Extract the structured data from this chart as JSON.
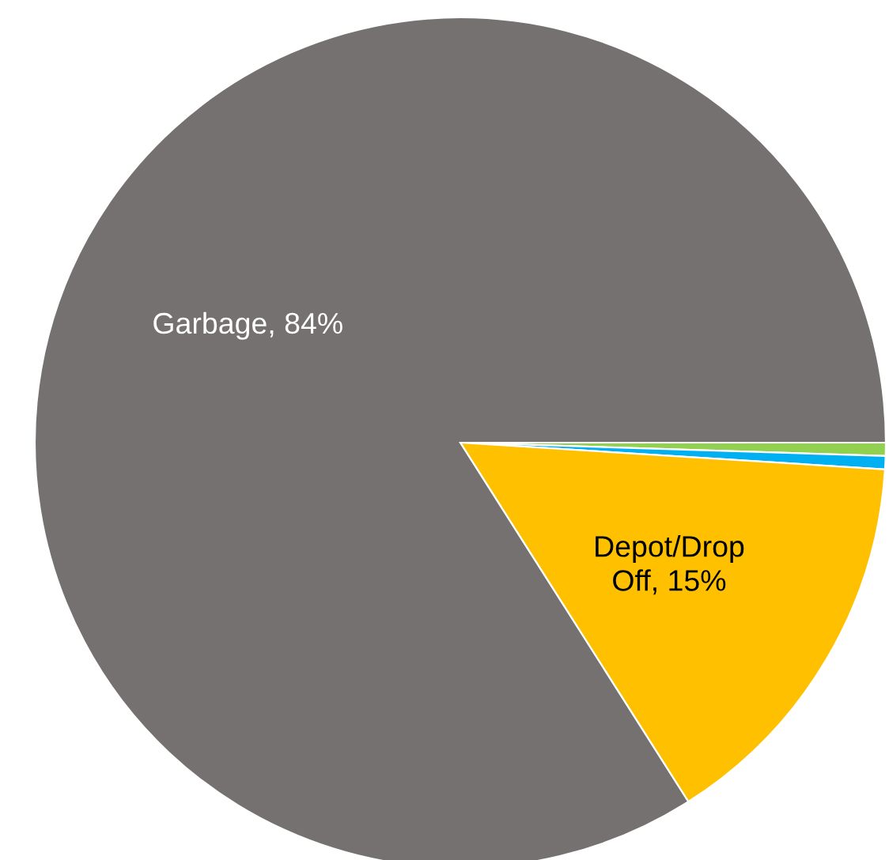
{
  "chart_data": {
    "type": "pie",
    "categories": [
      null,
      null,
      "Depot/Drop Off, 15%",
      "Garbage, 84%"
    ],
    "values": [
      0.5,
      0.5,
      15,
      84
    ],
    "colors": [
      "#92d050",
      "#00b0f0",
      "#ffc000",
      "#767171"
    ]
  }
}
